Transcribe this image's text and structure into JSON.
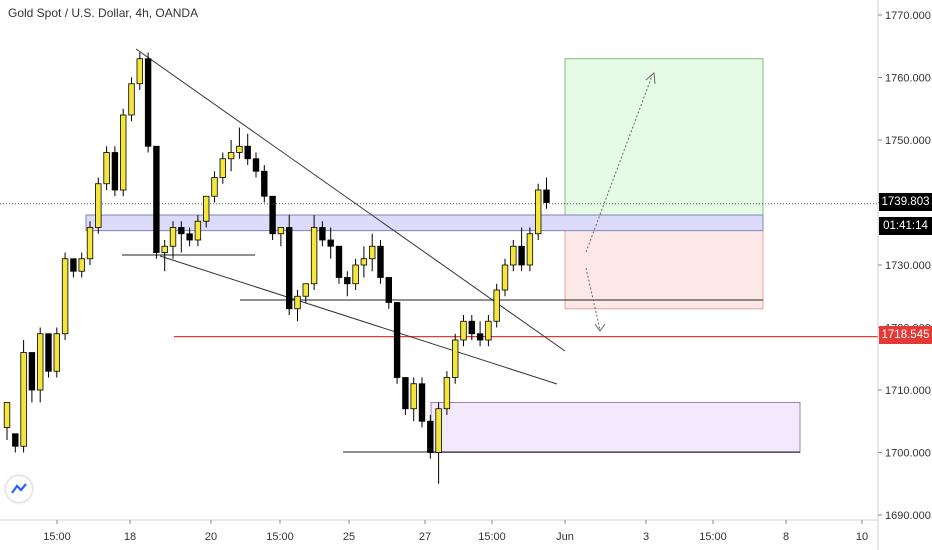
{
  "title": "Gold Spot / U.S. Dollar, 4h, OANDA",
  "price_tags": {
    "current": "1739.803",
    "countdown": "01:41:14",
    "level": "1718.545"
  },
  "colors": {
    "bull": "#f5e63b",
    "bear": "#000000",
    "level_line": "#e53935",
    "target_zone": "#e6fbe6",
    "stop_zone": "#fde8e8",
    "supply_zone": "#dcdcfa",
    "demand_zone": "#f2eafc"
  },
  "chart_data": {
    "type": "candlestick",
    "y_ticks": [
      "1770.000",
      "1760.000",
      "1750.000",
      "1740.000",
      "1730.000",
      "1720.000",
      "1710.000",
      "1700.000",
      "1690.000"
    ],
    "x_ticks": [
      "15:00",
      "18",
      "20",
      "15:00",
      "25",
      "27",
      "15:00",
      "Jun",
      "3",
      "15:00",
      "8",
      "10"
    ],
    "ylim": [
      1689,
      1772
    ],
    "grid": false,
    "candles": [
      [
        1704,
        1708,
        1702,
        1708
      ],
      [
        1703,
        1703,
        1700,
        1701
      ],
      [
        1701,
        1718,
        1700,
        1716
      ],
      [
        1716,
        1716,
        1708,
        1710
      ],
      [
        1710,
        1720,
        1708,
        1719
      ],
      [
        1719,
        1719,
        1712,
        1713
      ],
      [
        1713,
        1720,
        1712,
        1719
      ],
      [
        1719,
        1732,
        1718,
        1731
      ],
      [
        1731,
        1731,
        1728,
        1729
      ],
      [
        1729,
        1732,
        1728,
        1731
      ],
      [
        1731,
        1737,
        1730,
        1736
      ],
      [
        1736,
        1744,
        1735,
        1743
      ],
      [
        1743,
        1749,
        1742,
        1748
      ],
      [
        1748,
        1749,
        1741,
        1742
      ],
      [
        1742,
        1755,
        1741,
        1754
      ],
      [
        1754,
        1760,
        1753,
        1759
      ],
      [
        1759,
        1764,
        1758,
        1763
      ],
      [
        1763,
        1764,
        1748,
        1749
      ],
      [
        1749,
        1749,
        1731,
        1732
      ],
      [
        1732,
        1734,
        1729,
        1733
      ],
      [
        1733,
        1737,
        1731,
        1736
      ],
      [
        1736,
        1737,
        1732,
        1735
      ],
      [
        1735,
        1736,
        1733,
        1734
      ],
      [
        1734,
        1738,
        1733,
        1737
      ],
      [
        1737,
        1741,
        1736,
        1741
      ],
      [
        1741,
        1745,
        1740,
        1744
      ],
      [
        1744,
        1748,
        1743,
        1747
      ],
      [
        1747,
        1750,
        1745,
        1748
      ],
      [
        1748,
        1752,
        1747,
        1749
      ],
      [
        1749,
        1751,
        1746,
        1747
      ],
      [
        1747,
        1748,
        1744,
        1745
      ],
      [
        1745,
        1746,
        1740,
        1741
      ],
      [
        1741,
        1741,
        1734,
        1735
      ],
      [
        1735,
        1736,
        1733,
        1736
      ],
      [
        1736,
        1738,
        1722,
        1723
      ],
      [
        1723,
        1726,
        1721,
        1725
      ],
      [
        1725,
        1727,
        1724,
        1727
      ],
      [
        1727,
        1738,
        1726,
        1736
      ],
      [
        1736,
        1737,
        1733,
        1734
      ],
      [
        1734,
        1736,
        1731,
        1733
      ],
      [
        1733,
        1733,
        1727,
        1728
      ],
      [
        1728,
        1729,
        1725,
        1727
      ],
      [
        1727,
        1731,
        1726,
        1730
      ],
      [
        1730,
        1733,
        1728,
        1731
      ],
      [
        1731,
        1735,
        1729,
        1733
      ],
      [
        1733,
        1734,
        1727,
        1728
      ],
      [
        1728,
        1728,
        1723,
        1724
      ],
      [
        1724,
        1724,
        1711,
        1712
      ],
      [
        1712,
        1712,
        1706,
        1707
      ],
      [
        1707,
        1712,
        1705,
        1711
      ],
      [
        1711,
        1712,
        1704,
        1705
      ],
      [
        1705,
        1706,
        1699,
        1700
      ],
      [
        1700,
        1708,
        1695,
        1707
      ],
      [
        1707,
        1713,
        1706,
        1712
      ],
      [
        1712,
        1719,
        1711,
        1718
      ],
      [
        1718,
        1722,
        1717,
        1721
      ],
      [
        1721,
        1722,
        1718,
        1719
      ],
      [
        1719,
        1721,
        1717,
        1718
      ],
      [
        1718,
        1722,
        1717,
        1721
      ],
      [
        1721,
        1727,
        1720,
        1726
      ],
      [
        1726,
        1731,
        1725,
        1730
      ],
      [
        1730,
        1734,
        1729,
        1733
      ],
      [
        1733,
        1736,
        1729,
        1730
      ],
      [
        1730,
        1736,
        1729,
        1735
      ],
      [
        1735,
        1743,
        1734,
        1742
      ],
      [
        1742,
        1744,
        1739,
        1740
      ]
    ],
    "lines": [
      {
        "kind": "descending-trendline",
        "from": [
          21,
          1763
        ],
        "to": [
          85,
          1718
        ]
      },
      {
        "kind": "lower-trendline",
        "from": [
          21,
          1731
        ],
        "to": [
          85,
          1711
        ]
      }
    ],
    "zones": [
      {
        "kind": "target",
        "price_low": 1736,
        "price_high": 1763
      },
      {
        "kind": "stop",
        "price_low": 1723,
        "price_high": 1736
      },
      {
        "kind": "supply",
        "price_low": 1735.5,
        "price_high": 1738
      },
      {
        "kind": "demand",
        "price_low": 1700,
        "price_high": 1708
      }
    ],
    "horizontal_levels": [
      1739.803,
      1718.545
    ]
  }
}
